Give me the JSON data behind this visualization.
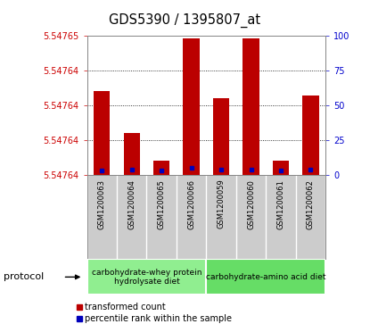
{
  "title": "GDS5390 / 1395807_at",
  "samples": [
    "GSM1200063",
    "GSM1200064",
    "GSM1200065",
    "GSM1200066",
    "GSM1200059",
    "GSM1200060",
    "GSM1200061",
    "GSM1200062"
  ],
  "red_percentiles": [
    60,
    30,
    10,
    98,
    55,
    98,
    10,
    57
  ],
  "blue_percentiles": [
    3,
    4,
    3,
    5,
    4,
    4,
    3,
    4
  ],
  "ytick_labels_left": [
    "5.54764",
    "5.54764",
    "5.54764",
    "5.54764",
    "5.54765"
  ],
  "ytick_positions_norm": [
    0,
    25,
    50,
    75,
    100
  ],
  "right_ytick_labels": [
    "0",
    "25",
    "50",
    "75",
    "100"
  ],
  "protocol_groups": [
    {
      "label": "carbohydrate-whey protein\nhydrolysate diet",
      "n_samples": 4,
      "color": "#90EE90"
    },
    {
      "label": "carbohydrate-amino acid diet",
      "n_samples": 4,
      "color": "#66DD66"
    }
  ],
  "legend_red": "transformed count",
  "legend_blue": "percentile rank within the sample",
  "bar_color": "#BB0000",
  "dot_color": "#0000BB",
  "axis_color_left": "#CC0000",
  "axis_color_right": "#0000CC",
  "bg_color": "#FFFFFF",
  "sample_box_color": "#CCCCCC"
}
